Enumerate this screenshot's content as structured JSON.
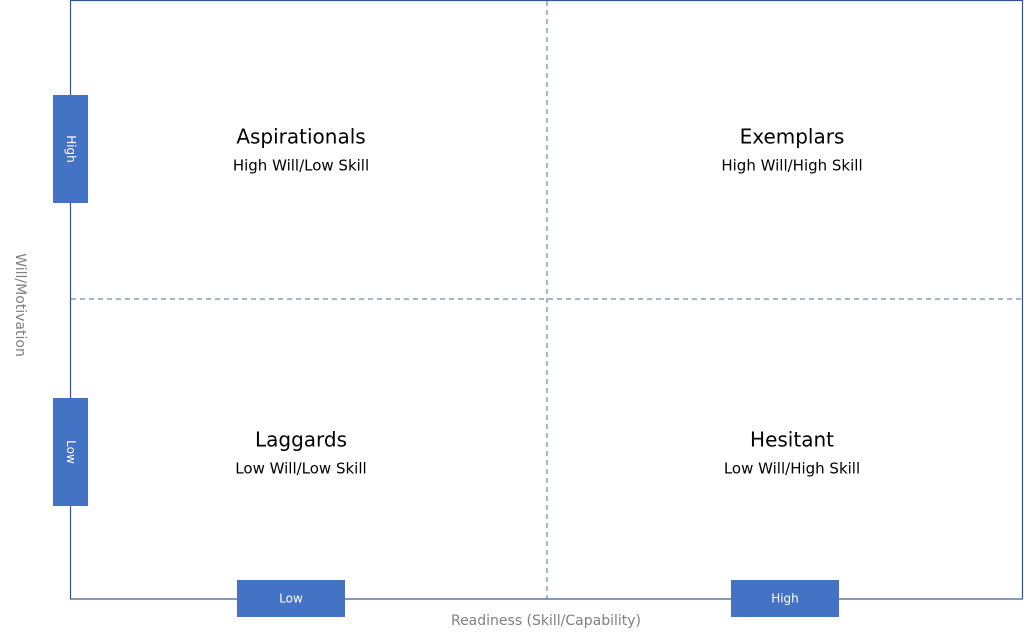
{
  "y_axis": {
    "label": "Will/Motivation",
    "levels": [
      "High",
      "Low"
    ]
  },
  "x_axis": {
    "label": "Readiness (Skill/Capability)",
    "levels": [
      "Low",
      "High"
    ]
  },
  "quadrants": [
    {
      "title": "Aspirationals",
      "subtitle": "High Will/Low Skill"
    },
    {
      "title": "Exemplars",
      "subtitle": "High Will/High Skill"
    },
    {
      "title": "Laggards",
      "subtitle": "Low Will/Low Skill"
    },
    {
      "title": "Hesitant",
      "subtitle": "Low Will/High Skill"
    }
  ]
}
